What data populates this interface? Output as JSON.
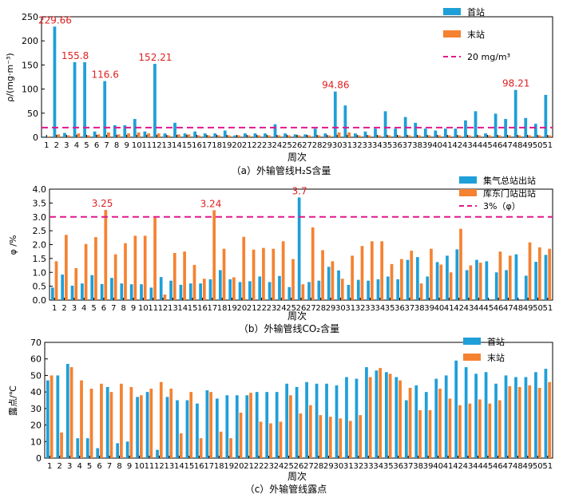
{
  "chart_data": [
    {
      "type": "bar",
      "caption": "（a）外输管线H₂S含量",
      "xlabel": "周次",
      "ylabel": "ρ/(mg·m⁻³)",
      "ylim": [
        0,
        250
      ],
      "yticks": [
        0,
        50,
        100,
        150,
        200,
        250
      ],
      "categories": [
        "1",
        "2",
        "3",
        "4",
        "5",
        "6",
        "7",
        "8",
        "9",
        "10",
        "11",
        "12",
        "13",
        "14",
        "15",
        "16",
        "17",
        "18",
        "19",
        "20",
        "21",
        "22",
        "23",
        "24",
        "25",
        "26",
        "27",
        "28",
        "29",
        "30",
        "31",
        "32",
        "33",
        "34",
        "35",
        "36",
        "37",
        "38",
        "39",
        "40",
        "41",
        "42",
        "43",
        "44",
        "45",
        "46",
        "47",
        "48",
        "49",
        "50",
        "51"
      ],
      "series": [
        {
          "name": "首站",
          "color": "#1f9fd8",
          "values": [
            2,
            229.66,
            9,
            155.8,
            155.8,
            12,
            116.6,
            25,
            25,
            38,
            12,
            152.21,
            8,
            30,
            8,
            12,
            8,
            8,
            14,
            4,
            8,
            8,
            8,
            27,
            8,
            6,
            6,
            18,
            8,
            94.86,
            66,
            8,
            12,
            18,
            54,
            18,
            42,
            30,
            18,
            14,
            18,
            18,
            35,
            54,
            8,
            49,
            38,
            98.21,
            40,
            28,
            88
          ]
        },
        {
          "name": "末站",
          "color": "#f58231",
          "values": [
            2,
            6,
            4,
            8,
            4,
            6,
            10,
            6,
            8,
            10,
            8,
            8,
            4,
            6,
            6,
            4,
            4,
            4,
            4,
            4,
            4,
            4,
            4,
            4,
            4,
            4,
            4,
            4,
            4,
            10,
            10,
            4,
            4,
            4,
            4,
            4,
            4,
            4,
            4,
            4,
            4,
            4,
            4,
            4,
            4,
            4,
            4,
            4,
            4,
            4,
            4
          ]
        }
      ],
      "reference_line": {
        "name": "20 mg/m³",
        "value": 20,
        "color": "#e0198c"
      },
      "annotations": [
        {
          "category": "2",
          "value": 229.66,
          "text": "229.66"
        },
        {
          "category": "4",
          "value": 155.8,
          "text": "155.8"
        },
        {
          "category": "7",
          "value": 116.6,
          "text": "116.6"
        },
        {
          "category": "12",
          "value": 152.21,
          "text": "152.21"
        },
        {
          "category": "30",
          "value": 94.86,
          "text": "94.86"
        },
        {
          "category": "48",
          "value": 98.21,
          "text": "98.21"
        }
      ],
      "legend": "top-right"
    },
    {
      "type": "bar",
      "caption": "（b）外输管线CO₂含量",
      "xlabel": "周次",
      "ylabel": "φ /%",
      "ylim": [
        0,
        4.0
      ],
      "yticks": [
        0,
        0.5,
        1.0,
        1.5,
        2.0,
        2.5,
        3.0,
        3.5,
        4.0
      ],
      "categories": [
        "1",
        "2",
        "3",
        "4",
        "5",
        "6",
        "7",
        "8",
        "9",
        "10",
        "11",
        "12",
        "13",
        "14",
        "15",
        "16",
        "17",
        "18",
        "19",
        "20",
        "21",
        "22",
        "23",
        "24",
        "25",
        "26",
        "27",
        "28",
        "29",
        "30",
        "31",
        "32",
        "33",
        "34",
        "35",
        "36",
        "37",
        "38",
        "39",
        "40",
        "41",
        "42",
        "43",
        "44",
        "45",
        "46",
        "47",
        "48",
        "49",
        "50",
        "51"
      ],
      "series": [
        {
          "name": "集气总站出站",
          "color": "#1f9fd8",
          "values": [
            0.45,
            0.92,
            0.52,
            0.6,
            0.9,
            0.58,
            0.8,
            0.6,
            0.57,
            0.57,
            0.45,
            0.83,
            0.7,
            0.55,
            0.6,
            0.6,
            0.75,
            1.08,
            0.75,
            0.65,
            0.68,
            0.85,
            0.65,
            0.87,
            0.47,
            3.7,
            0.65,
            0.7,
            1.2,
            1.07,
            0.55,
            0.73,
            0.7,
            0.75,
            0.85,
            0.75,
            1.45,
            1.55,
            0.85,
            1.37,
            1.6,
            1.83,
            1.08,
            1.45,
            1.4,
            1.0,
            1.08,
            1.65,
            0.88,
            1.38,
            1.63
          ]
        },
        {
          "name": "库东门站出站",
          "color": "#f58231",
          "values": [
            1.4,
            2.35,
            1.15,
            2.02,
            2.27,
            3.25,
            1.65,
            2.05,
            2.32,
            2.32,
            2.97,
            0.2,
            1.7,
            1.75,
            1.27,
            0.77,
            3.24,
            1.85,
            0.82,
            2.28,
            1.82,
            1.88,
            1.85,
            2.12,
            1.48,
            0.57,
            2.62,
            1.8,
            1.4,
            0.77,
            1.6,
            1.95,
            2.12,
            2.12,
            1.3,
            1.48,
            1.78,
            0.6,
            1.85,
            1.28,
            1.0,
            2.57,
            1.25,
            1.35,
            0.0,
            1.75,
            1.6,
            0.0,
            2.08,
            1.9,
            1.85
          ]
        }
      ],
      "reference_line": {
        "name": "3%（φ）",
        "value": 3.0,
        "color": "#e0198c"
      },
      "annotations": [
        {
          "category": "6",
          "value": 3.25,
          "text": "3.25"
        },
        {
          "category": "17",
          "value": 3.24,
          "text": "3.24"
        },
        {
          "category": "26",
          "value": 3.7,
          "text": "3.7"
        }
      ],
      "legend": "top-right"
    },
    {
      "type": "bar",
      "caption": "（c）外输管线露点",
      "xlabel": "周次",
      "ylabel": "露点/℃",
      "ylim": [
        0,
        70
      ],
      "yticks": [
        0,
        10,
        20,
        30,
        40,
        50,
        60,
        70
      ],
      "categories": [
        "1",
        "2",
        "3",
        "4",
        "5",
        "6",
        "7",
        "8",
        "9",
        "10",
        "11",
        "12",
        "13",
        "14",
        "15",
        "16",
        "17",
        "18",
        "19",
        "20",
        "21",
        "22",
        "23",
        "24",
        "25",
        "26",
        "27",
        "28",
        "29",
        "30",
        "31",
        "32",
        "33",
        "34",
        "35",
        "36",
        "37",
        "38",
        "39",
        "40",
        "41",
        "42",
        "43",
        "44",
        "45",
        "46",
        "47",
        "48",
        "49",
        "50",
        "51"
      ],
      "series": [
        {
          "name": "首站",
          "color": "#1f9fd8",
          "values": [
            47,
            50,
            57,
            12,
            12,
            6,
            43,
            9,
            10,
            37,
            40,
            5,
            37,
            35,
            35,
            33,
            41,
            36,
            38,
            38,
            38,
            40,
            40,
            40,
            45,
            43,
            46,
            45,
            45,
            44,
            49,
            48,
            55,
            53,
            52,
            49,
            35,
            44,
            40,
            48,
            50,
            59,
            55,
            51,
            52,
            45,
            50,
            49,
            49,
            52,
            54
          ]
        },
        {
          "name": "末站",
          "color": "#f58231",
          "values": [
            50,
            15.5,
            55,
            47,
            42,
            45,
            40,
            45,
            43,
            38,
            42,
            46,
            42,
            15,
            40,
            12,
            40,
            16,
            12,
            27.5,
            39.5,
            22,
            21,
            22,
            38,
            27,
            32,
            26,
            25,
            24,
            22.5,
            26,
            49,
            54.5,
            51,
            47,
            42.5,
            29,
            29,
            42,
            36,
            32,
            33,
            35.5,
            33,
            35,
            43.5,
            43,
            44,
            42.5,
            46
          ]
        }
      ],
      "legend": "top-right"
    }
  ]
}
